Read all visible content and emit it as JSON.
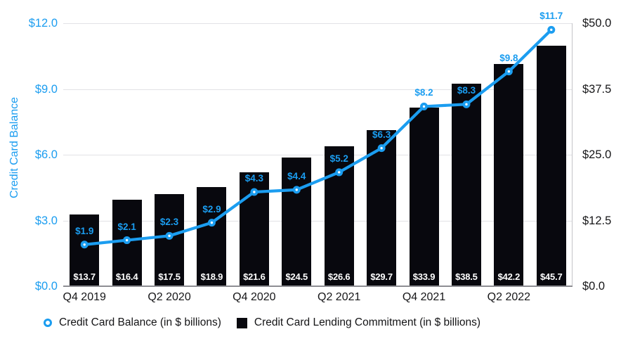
{
  "chart_data": {
    "type": "combo",
    "n_points": 12,
    "x_ticks": [
      {
        "index": 0,
        "label": "Q4 2019"
      },
      {
        "index": 2,
        "label": "Q2 2020"
      },
      {
        "index": 4,
        "label": "Q4 2020"
      },
      {
        "index": 6,
        "label": "Q2 2021"
      },
      {
        "index": 8,
        "label": "Q4 2021"
      },
      {
        "index": 10,
        "label": "Q2 2022"
      }
    ],
    "series": [
      {
        "name": "Credit Card Balance (in $ billions)",
        "type": "line",
        "axis": "left",
        "color": "#1b9df0",
        "values": [
          1.9,
          2.1,
          2.3,
          2.9,
          4.3,
          4.4,
          5.2,
          6.3,
          8.2,
          8.3,
          9.8,
          11.7
        ],
        "point_labels": [
          "$1.9",
          "$2.1",
          "$2.3",
          "$2.9",
          "$4.3",
          "$4.4",
          "$5.2",
          "$6.3",
          "$8.2",
          "$8.3",
          "$9.8",
          "$11.7"
        ]
      },
      {
        "name": "Credit Card Lending Commitment (in $ billions)",
        "type": "bar",
        "axis": "right",
        "color": "#08080e",
        "values": [
          13.7,
          16.4,
          17.5,
          18.9,
          21.6,
          24.5,
          26.6,
          29.7,
          33.9,
          38.5,
          42.2,
          45.7
        ],
        "bar_labels": [
          "$13.7",
          "$16.4",
          "$17.5",
          "$18.9",
          "$21.6",
          "$24.5",
          "$26.6",
          "$29.7",
          "$33.9",
          "$38.5",
          "$42.2",
          "$45.7"
        ]
      }
    ],
    "axes": {
      "left": {
        "title": "Credit Card Balance",
        "min": 0,
        "max": 12,
        "ticks": [
          "$12.0",
          "$9.0",
          "$6.0",
          "$3.0",
          "$0.0"
        ],
        "color": "#1b9df0"
      },
      "right": {
        "min": 0,
        "max": 50,
        "ticks": [
          "$50.0",
          "$37.5",
          "$25.0",
          "$12.5",
          "$0.0"
        ],
        "color": "#161618"
      }
    },
    "grid": true,
    "legend_position": "bottom"
  },
  "legend": {
    "items": [
      {
        "label": "Credit Card Balance (in $ billions)",
        "marker": "blue-ring"
      },
      {
        "label": "Credit Card Lending Commitment (in $ billions)",
        "marker": "black-square"
      }
    ]
  },
  "colors": {
    "accent_blue": "#1b9df0",
    "bar_black": "#08080e",
    "gridline": "#e2e2e6",
    "x_axis_line": "#8e8e93",
    "right_axis_line": "#c4c4c8",
    "background": "#ffffff"
  }
}
